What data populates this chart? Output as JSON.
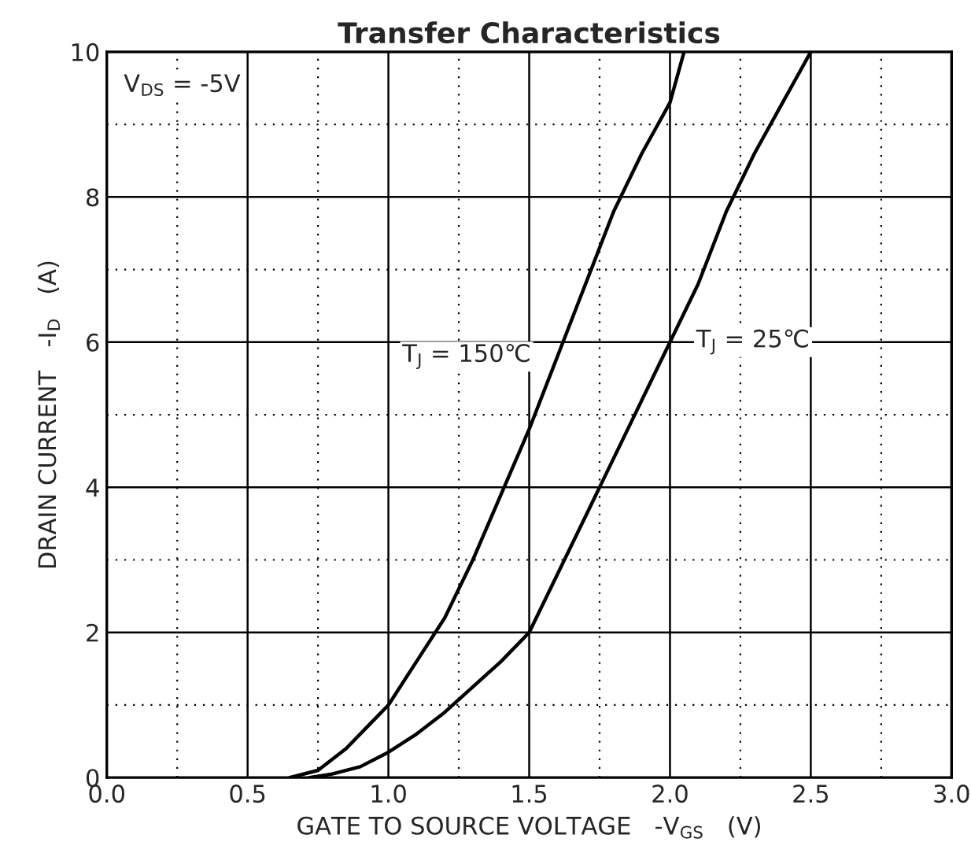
{
  "chart_data": {
    "type": "line",
    "title": "Transfer Characteristics",
    "xlabel": "GATE TO SOURCE VOLTAGE   -V$_{GS}$   (V)",
    "ylabel": "DRAIN CURRENT   -I$_{D}$   (A)",
    "annotations": [
      "V$_{DS}$ = -5V"
    ],
    "xlim": [
      0,
      3
    ],
    "xticks": [
      {
        "value": 0,
        "label": "0.0"
      },
      {
        "value": 0.5,
        "label": "0.5"
      },
      {
        "value": 1,
        "label": "1.0"
      },
      {
        "value": 1.5,
        "label": "1.5"
      },
      {
        "value": 2,
        "label": "2.0"
      },
      {
        "value": 2.5,
        "label": "2.5"
      },
      {
        "value": 3,
        "label": "3.0"
      }
    ],
    "ylim": [
      0,
      10
    ],
    "yticks": [
      0,
      2,
      4,
      6,
      8,
      10
    ],
    "grid": true,
    "marker": "none",
    "line_style": "solid",
    "series": [
      {
        "name": "T$_{J}$ = 150℃",
        "color": "#000000",
        "x": [
          0.65,
          0.75,
          0.85,
          0.95,
          1.0,
          1.1,
          1.2,
          1.3,
          1.4,
          1.5,
          1.6,
          1.7,
          1.8,
          1.9,
          2.0,
          2.05
        ],
        "values": [
          0,
          0.1,
          0.4,
          0.8,
          1.0,
          1.6,
          2.2,
          3.0,
          3.9,
          4.8,
          5.8,
          6.8,
          7.8,
          8.6,
          9.3,
          10
        ]
      },
      {
        "name": "T$_{J}$ = 25℃",
        "color": "#000000",
        "x": [
          0.72,
          0.8,
          0.9,
          1.0,
          1.1,
          1.2,
          1.3,
          1.4,
          1.5,
          1.6,
          1.7,
          1.8,
          1.9,
          2.0,
          2.1,
          2.2,
          2.3,
          2.4,
          2.5
        ],
        "values": [
          0,
          0.05,
          0.15,
          0.35,
          0.6,
          0.9,
          1.25,
          1.6,
          2.0,
          2.8,
          3.6,
          4.4,
          5.2,
          6.0,
          6.8,
          7.8,
          8.6,
          9.3,
          10
        ]
      }
    ]
  }
}
